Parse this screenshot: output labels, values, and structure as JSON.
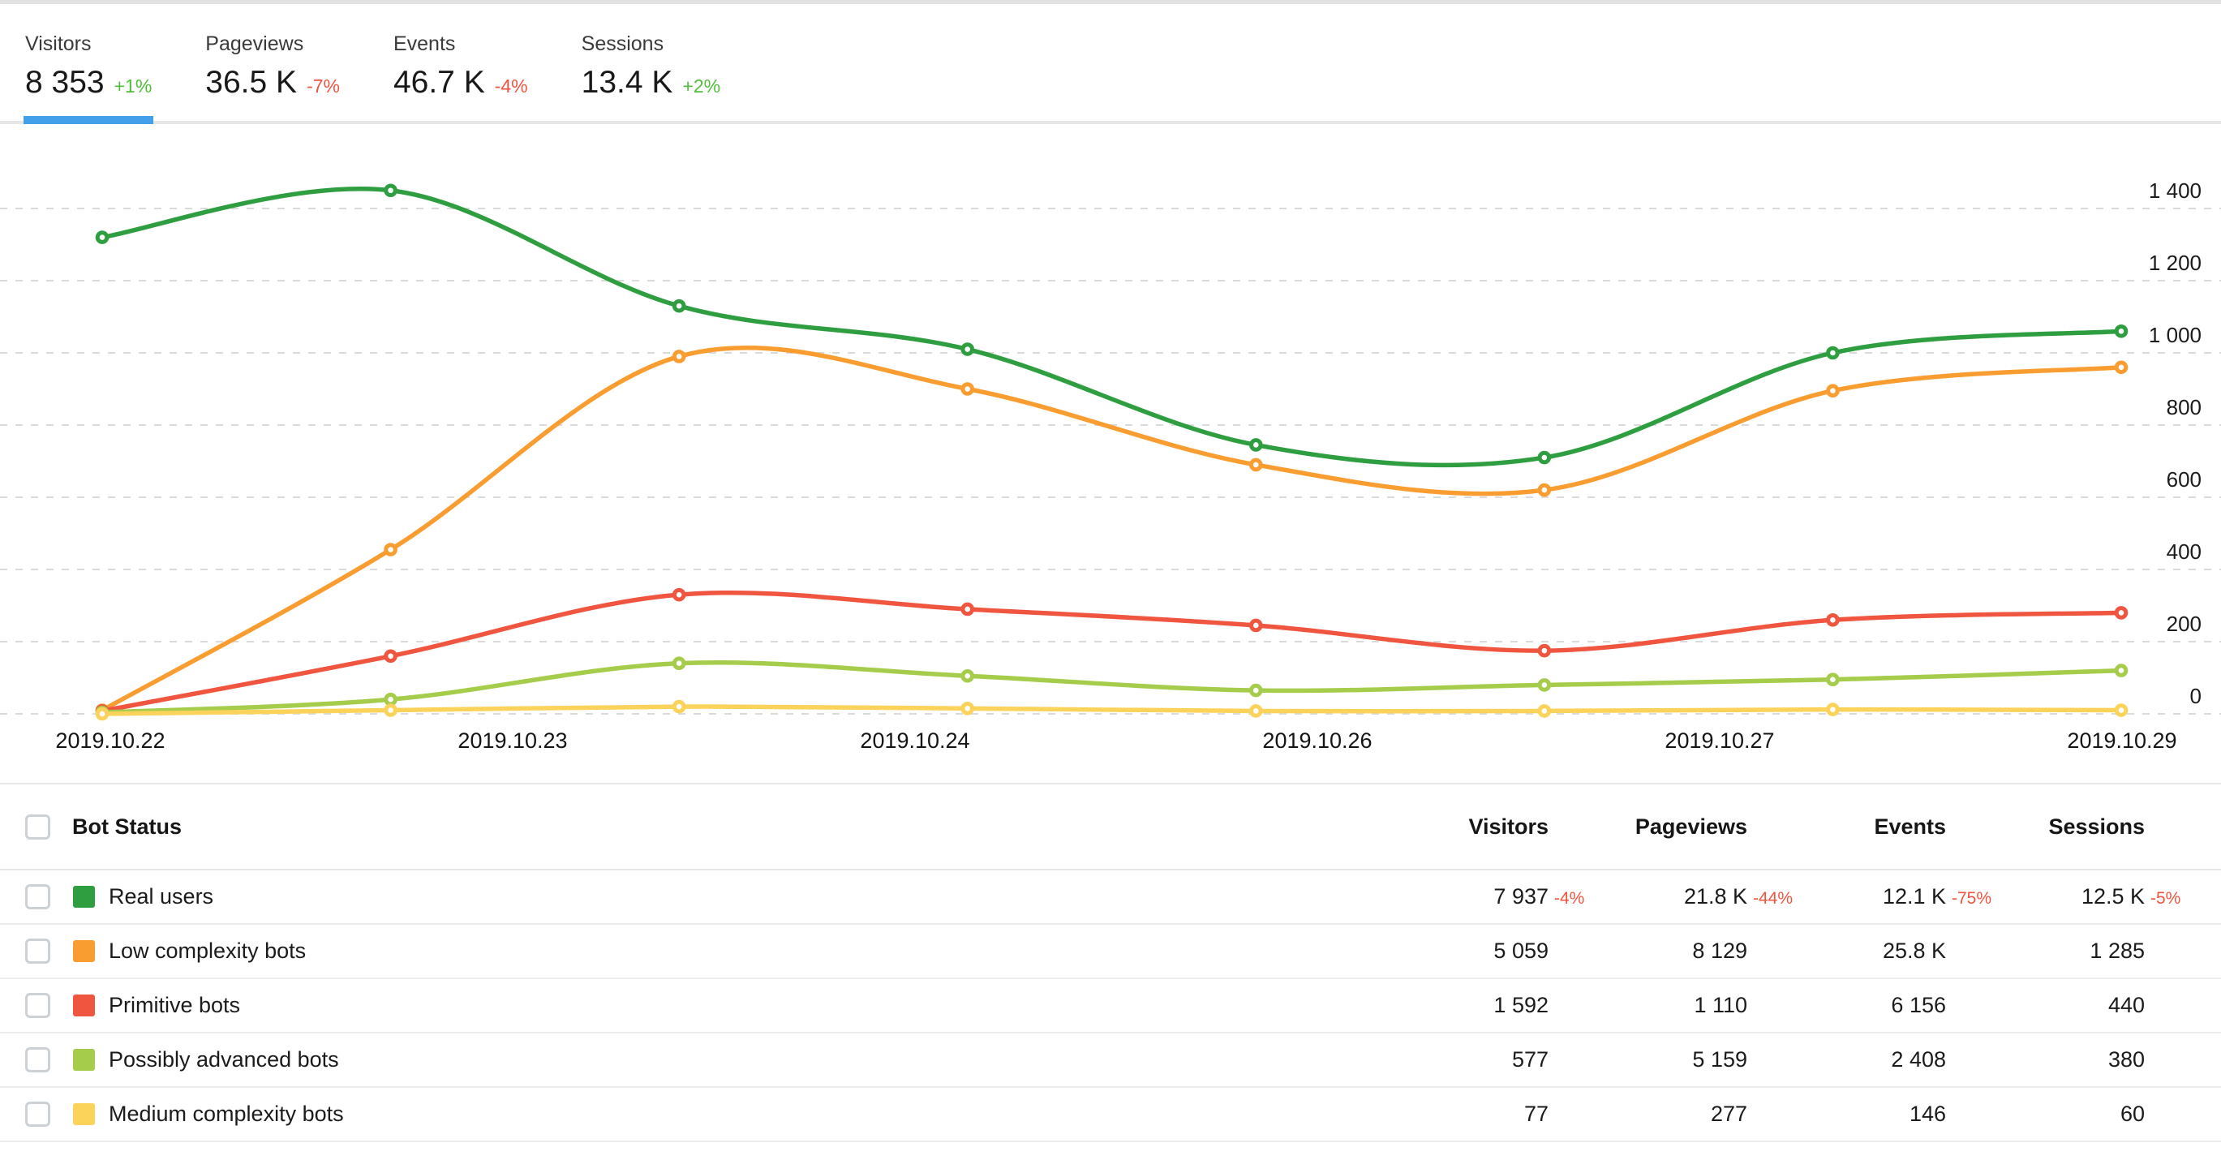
{
  "tabs": [
    {
      "label": "Visitors",
      "value": "8 353",
      "delta": "+1%",
      "direction": "up",
      "active": true
    },
    {
      "label": "Pageviews",
      "value": "36.5 K",
      "delta": "-7%",
      "direction": "down",
      "active": false
    },
    {
      "label": "Events",
      "value": "46.7 K",
      "delta": "-4%",
      "direction": "down",
      "active": false
    },
    {
      "label": "Sessions",
      "value": "13.4 K",
      "delta": "+2%",
      "direction": "up",
      "active": false
    }
  ],
  "colors": {
    "delta_up": "#4fbe3a",
    "delta_down": "#f05540",
    "active_tab_underline": "#429fea",
    "gridline": "#dadada"
  },
  "chart_data": {
    "type": "line",
    "num_points": 8,
    "x_labels": [
      "2019.10.22",
      "2019.10.23",
      "2019.10.24",
      "2019.10.26",
      "2019.10.27",
      "2019.10.29"
    ],
    "ylim": [
      0,
      1400
    ],
    "yticks": [
      {
        "value": 0,
        "label": "0"
      },
      {
        "value": 200,
        "label": "200"
      },
      {
        "value": 400,
        "label": "400"
      },
      {
        "value": 600,
        "label": "600"
      },
      {
        "value": 800,
        "label": "800"
      },
      {
        "value": 1000,
        "label": "1 000"
      },
      {
        "value": 1200,
        "label": "1 200"
      },
      {
        "value": 1400,
        "label": "1 400"
      }
    ],
    "grid": "horizontal-dashed",
    "legend_position": "table-below",
    "series": [
      {
        "name": "Real users",
        "color": "#2f9e41",
        "values": [
          1320,
          1450,
          1130,
          1010,
          745,
          710,
          1000,
          1060
        ]
      },
      {
        "name": "Low complexity bots",
        "color": "#f99d31",
        "values": [
          10,
          455,
          990,
          900,
          690,
          620,
          895,
          960
        ]
      },
      {
        "name": "Primitive bots",
        "color": "#f05540",
        "values": [
          8,
          160,
          330,
          290,
          245,
          175,
          260,
          280
        ]
      },
      {
        "name": "Possibly advanced bots",
        "color": "#a5cc4a",
        "values": [
          4,
          40,
          140,
          105,
          65,
          80,
          95,
          120
        ]
      },
      {
        "name": "Medium complexity bots",
        "color": "#fbd35b",
        "values": [
          0,
          10,
          20,
          15,
          8,
          8,
          12,
          10
        ]
      }
    ]
  },
  "table": {
    "header": {
      "label": "Bot Status",
      "columns": [
        "Visitors",
        "Pageviews",
        "Events",
        "Sessions"
      ]
    },
    "rows": [
      {
        "name": "Real users",
        "color": "#2f9e41",
        "cells": [
          {
            "value": "7 937",
            "delta": "-4%"
          },
          {
            "value": "21.8 K",
            "delta": "-44%"
          },
          {
            "value": "12.1 K",
            "delta": "-75%"
          },
          {
            "value": "12.5 K",
            "delta": "-5%"
          }
        ]
      },
      {
        "name": "Low complexity bots",
        "color": "#f99d31",
        "cells": [
          {
            "value": "5 059"
          },
          {
            "value": "8 129"
          },
          {
            "value": "25.8 K"
          },
          {
            "value": "1 285"
          }
        ]
      },
      {
        "name": "Primitive bots",
        "color": "#f05540",
        "cells": [
          {
            "value": "1 592"
          },
          {
            "value": "1 110"
          },
          {
            "value": "6 156"
          },
          {
            "value": "440"
          }
        ]
      },
      {
        "name": "Possibly advanced bots",
        "color": "#a5cc4a",
        "cells": [
          {
            "value": "577"
          },
          {
            "value": "5 159"
          },
          {
            "value": "2 408"
          },
          {
            "value": "380"
          }
        ]
      },
      {
        "name": "Medium complexity bots",
        "color": "#fbd35b",
        "cells": [
          {
            "value": "77"
          },
          {
            "value": "277"
          },
          {
            "value": "146"
          },
          {
            "value": "60"
          }
        ]
      }
    ]
  }
}
